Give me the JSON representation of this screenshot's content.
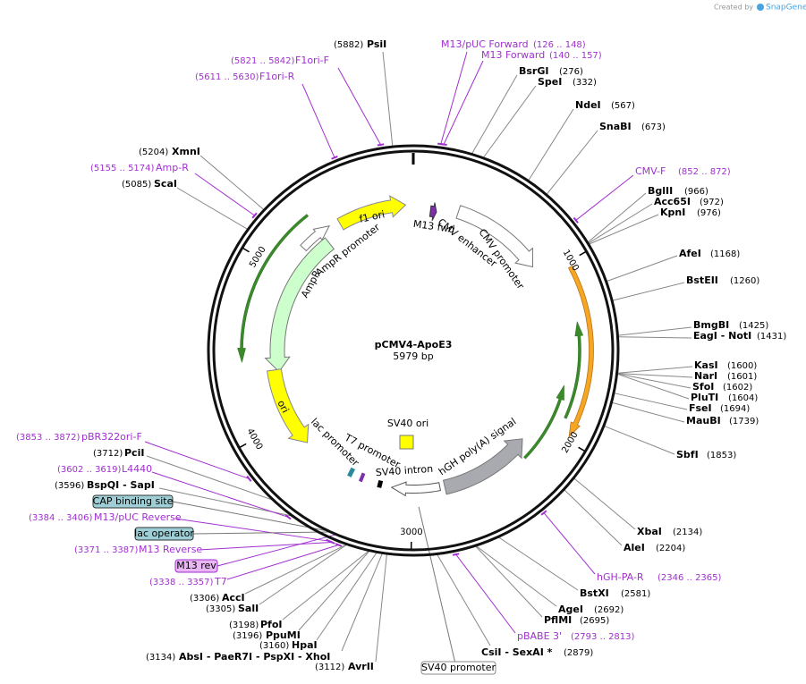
{
  "header": {
    "credit_prefix": "Created by",
    "credit_brand": "SnapGene"
  },
  "map": {
    "name": "pCMV4-ApoE3",
    "length": "5979 bp"
  },
  "ticks": [
    "1000",
    "2000",
    "3000",
    "4000",
    "5000"
  ],
  "sites": [
    {
      "name": "PsiI",
      "position": "(5882)"
    },
    {
      "name": "BsrGI",
      "position": "(276)"
    },
    {
      "name": "SpeI",
      "position": "(332)"
    },
    {
      "name": "NdeI",
      "position": "(567)"
    },
    {
      "name": "SnaBI",
      "position": "(673)"
    },
    {
      "name": "BglII",
      "position": "(966)"
    },
    {
      "name": "Acc65I",
      "position": "(972)"
    },
    {
      "name": "KpnI",
      "position": "(976)"
    },
    {
      "name": "AfeI",
      "position": "(1168)"
    },
    {
      "name": "BstEII",
      "position": "(1260)"
    },
    {
      "name": "BmgBI",
      "position": "(1425)"
    },
    {
      "name": "EagI - NotI",
      "position": "(1431)"
    },
    {
      "name": "KasI",
      "position": "(1600)"
    },
    {
      "name": "NarI",
      "position": "(1601)"
    },
    {
      "name": "SfoI",
      "position": "(1602)"
    },
    {
      "name": "PluTI",
      "position": "(1604)"
    },
    {
      "name": "FseI",
      "position": "(1694)"
    },
    {
      "name": "MauBI",
      "position": "(1739)"
    },
    {
      "name": "SbfI",
      "position": "(1853)"
    },
    {
      "name": "XbaI",
      "position": "(2134)"
    },
    {
      "name": "AleI",
      "position": "(2204)"
    },
    {
      "name": "BstXI",
      "position": "(2581)"
    },
    {
      "name": "AgeI",
      "position": "(2692)"
    },
    {
      "name": "PflMI",
      "position": "(2695)"
    },
    {
      "name": "CsiI - SexAI *",
      "position": "(2879)"
    },
    {
      "name": "AvrII",
      "position": "(3112)"
    },
    {
      "name": "AbsI - PaeR7I - PspXI - XhoI",
      "position": "(3134)"
    },
    {
      "name": "HpaI",
      "position": "(3160)"
    },
    {
      "name": "PpuMI",
      "position": "(3196)"
    },
    {
      "name": "PfoI",
      "position": "(3198)"
    },
    {
      "name": "SalI",
      "position": "(3305)"
    },
    {
      "name": "AccI",
      "position": "(3306)"
    },
    {
      "name": "PciI",
      "position": "(3712)"
    },
    {
      "name": "BspQI - SapI",
      "position": "(3596)"
    },
    {
      "name": "XmnI",
      "position": "(5204)"
    },
    {
      "name": "ScaI",
      "position": "(5085)"
    }
  ],
  "primers": [
    {
      "name": "F1ori-F",
      "range": "(5821 .. 5842)"
    },
    {
      "name": "F1ori-R",
      "range": "(5611 .. 5630)"
    },
    {
      "name": "Amp-R",
      "range": "(5155 .. 5174)"
    },
    {
      "name": "M13/pUC Forward",
      "range": "(126 .. 148)"
    },
    {
      "name": "M13 Forward",
      "range": "(140 .. 157)"
    },
    {
      "name": "CMV-F",
      "range": "(852 .. 872)"
    },
    {
      "name": "hGH-PA-R",
      "range": "(2346 .. 2365)"
    },
    {
      "name": "pBABE 3'",
      "range": "(2793 .. 2813)"
    },
    {
      "name": "pBR322ori-F",
      "range": "(3853 .. 3872)"
    },
    {
      "name": "L4440",
      "range": "(3602 .. 3619)"
    },
    {
      "name": "M13/pUC Reverse",
      "range": "(3384 .. 3406)"
    },
    {
      "name": "M13 Reverse",
      "range": "(3371 .. 3387)"
    },
    {
      "name": "T7",
      "range": "(3338 .. 3357)"
    }
  ],
  "boxed_features": [
    "CAP binding site",
    "lac operator",
    "M13 rev",
    "SV40 promoter"
  ],
  "features": [
    "f1 ori",
    "M13 fwd",
    "CMV enhancer",
    "CMV promoter",
    "AmpR promoter",
    "AmpR",
    "ori",
    "lac promoter",
    "T7 promoter",
    "SV40 ori",
    "SV40 intron",
    "hGH poly(A) signal"
  ]
}
